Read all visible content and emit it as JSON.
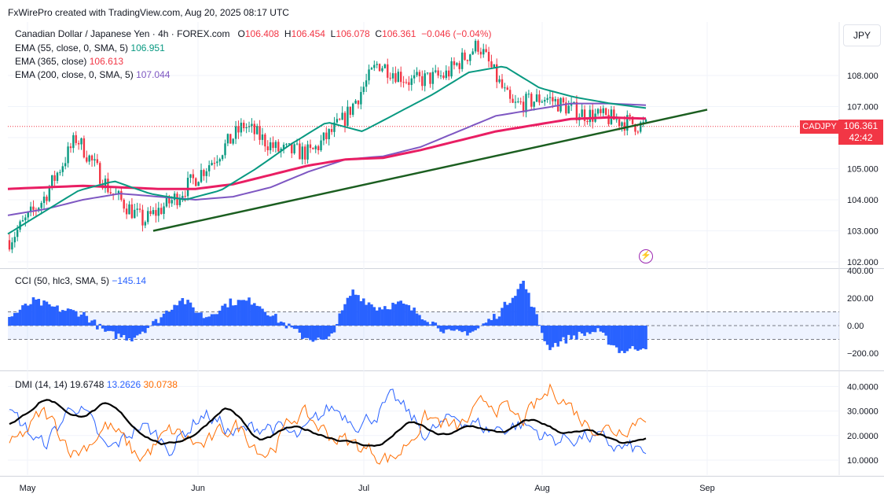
{
  "credit": "FxWirePro created with TradingView.com, Aug 20, 2025 08:17 UTC",
  "currency_button": "JPY",
  "symbol_tag": "CADJPY",
  "price_tag": {
    "price": "106.361",
    "countdown": "42:42"
  },
  "header": {
    "title": "Canadian Dollar / Japanese Yen · 4h · FOREX.com",
    "o_label": "O",
    "o": "106.408",
    "h_label": "H",
    "h": "106.454",
    "l_label": "L",
    "l": "106.078",
    "c_label": "C",
    "c": "106.361",
    "change": "−0.046 (−0.04%)"
  },
  "legends": {
    "ema55": {
      "label": "EMA (55, close, 0, SMA, 5)",
      "value": "106.951"
    },
    "ema365": {
      "label": "EMA (365, close)",
      "value": "106.613"
    },
    "ema200": {
      "label": "EMA (200, close, 0, SMA, 5)",
      "value": "107.044"
    },
    "cci": {
      "label": "CCI (50, hlc3, SMA, 5)",
      "value": "−145.14"
    },
    "dmi": {
      "label": "DMI (14, 14)",
      "adx": "19.6748",
      "plus_di": "13.2626",
      "minus_di": "30.0738"
    }
  },
  "colors": {
    "up": "#089981",
    "down": "#f23645",
    "ema55": "#089981",
    "ema365": "#e91e63",
    "ema200": "#7e57c2",
    "trendline": "#1b5e20",
    "cci": "#2962ff",
    "adx": "#000000",
    "plus_di": "#2962ff",
    "minus_di": "#ff6d00"
  },
  "chart_data": [
    {
      "type": "candlestick",
      "title": "Canadian Dollar / Japanese Yen · 4h · FOREX.com",
      "y_ticks": [
        "102.000",
        "103.000",
        "104.000",
        "105.000",
        "106.000",
        "107.000",
        "108.000"
      ],
      "ylim": [
        101.9,
        109.3
      ],
      "x_ticks": [
        "May",
        "Jun",
        "Jul",
        "Aug",
        "Sep"
      ],
      "last_price": 106.361,
      "approx_close_path": [
        [
          "May",
          102.7
        ],
        [
          "early May",
          104.0
        ],
        [
          "May 10",
          106.0
        ],
        [
          "mid May",
          104.3
        ],
        [
          "May 25",
          103.3
        ],
        [
          "Jun",
          104.1
        ],
        [
          "Jun 10",
          105.2
        ],
        [
          "Jun 20",
          106.4
        ],
        [
          "Jun 25",
          105.6
        ],
        [
          "Jul",
          105.5
        ],
        [
          "Jul 5",
          106.6
        ],
        [
          "Jul 14",
          108.4
        ],
        [
          "Jul 20",
          107.8
        ],
        [
          "Jul 30",
          108.0
        ],
        [
          "Aug 1",
          109.0
        ],
        [
          "Aug 3",
          107.0
        ],
        [
          "Aug 8",
          107.3
        ],
        [
          "Aug 12",
          106.8
        ],
        [
          "Aug 15",
          106.6
        ],
        [
          "Aug 20",
          106.361
        ]
      ],
      "series": [
        {
          "name": "EMA (55, close, 0, SMA, 5)",
          "last": 106.951,
          "values": [
            102.9,
            103.6,
            104.3,
            104.6,
            104.2,
            104.0,
            104.3,
            105.0,
            105.8,
            106.5,
            106.2,
            106.8,
            107.4,
            108.1,
            108.3,
            107.6,
            107.3,
            107.1,
            106.951
          ]
        },
        {
          "name": "EMA (365, close)",
          "last": 106.613,
          "values": [
            104.35,
            104.4,
            104.45,
            104.4,
            104.35,
            104.35,
            104.5,
            104.8,
            105.1,
            105.3,
            105.35,
            105.6,
            105.9,
            106.2,
            106.4,
            106.6,
            106.65,
            106.613
          ]
        },
        {
          "name": "EMA (200, close, 0, SMA, 5)",
          "last": 107.044,
          "values": [
            103.5,
            103.7,
            104.0,
            104.2,
            104.1,
            104.0,
            104.1,
            104.4,
            104.9,
            105.3,
            105.4,
            105.7,
            106.2,
            106.7,
            106.9,
            107.1,
            107.1,
            107.044
          ]
        }
      ],
      "trendline": {
        "from": [
          "May 23",
          103.0
        ],
        "to": [
          "Sep 1",
          106.9
        ]
      }
    },
    {
      "type": "area",
      "title": "CCI (50, hlc3, SMA, 5)",
      "y_ticks": [
        "400.00",
        "200.00",
        "0.00",
        "−200.00"
      ],
      "ylim": [
        -270,
        400
      ],
      "bands": [
        100,
        -100
      ],
      "last": -145.14
    },
    {
      "type": "line",
      "title": "DMI (14, 14)",
      "y_ticks": [
        "40.0000",
        "30.0000",
        "20.0000",
        "10.0000"
      ],
      "ylim": [
        2,
        44
      ],
      "series": [
        {
          "name": "ADX",
          "last": 19.6748
        },
        {
          "name": "+DI",
          "last": 13.2626
        },
        {
          "name": "−DI",
          "last": 30.0738
        }
      ]
    }
  ]
}
